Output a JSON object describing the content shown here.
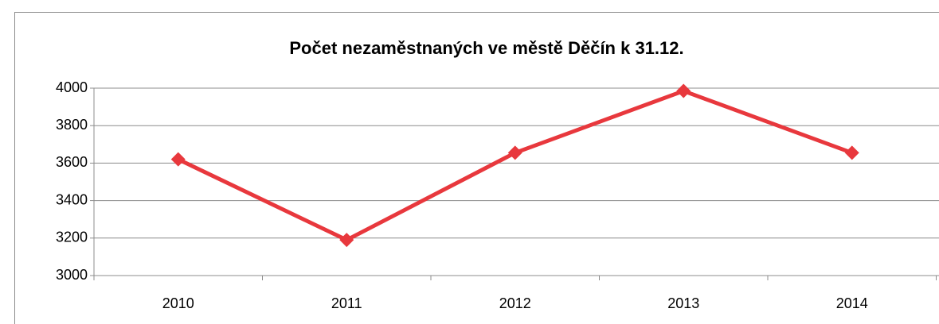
{
  "chart_data": {
    "type": "line",
    "title": "Počet nezaměstnaných ve městě Děčín k 31.12.",
    "categories": [
      "2010",
      "2011",
      "2012",
      "2013",
      "2014"
    ],
    "values": [
      3620,
      3190,
      3655,
      3985,
      3655
    ],
    "color": "#e8383d",
    "ylim": [
      3000,
      4000
    ],
    "yticks": [
      3000,
      3200,
      3400,
      3600,
      3800,
      4000
    ],
    "grid": true
  }
}
